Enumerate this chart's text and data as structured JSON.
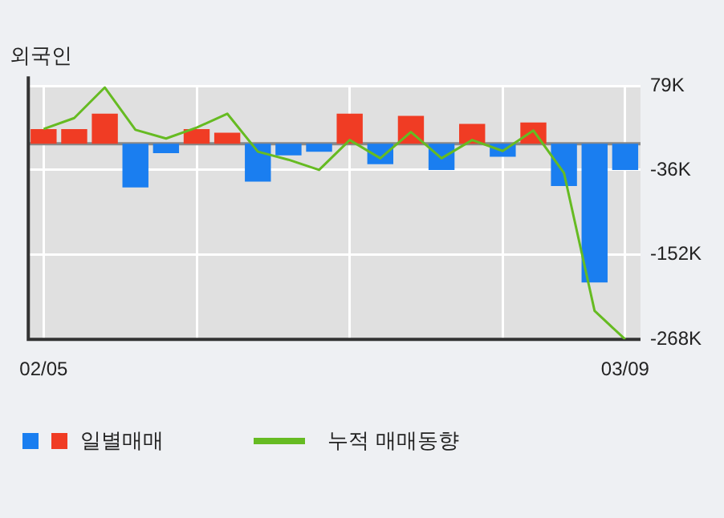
{
  "chart_data": {
    "type": "bar",
    "title": "외국인",
    "categories": [
      "02/05",
      null,
      null,
      null,
      null,
      null,
      null,
      null,
      null,
      null,
      null,
      null,
      null,
      null,
      null,
      null,
      null,
      null,
      null,
      "03/09"
    ],
    "series": [
      {
        "name": "일별매매",
        "colors": [
          "#f03c24",
          "#f03c24",
          "#f03c24",
          "#1a7ef0",
          "#1a7ef0",
          "#f03c24",
          "#f03c24",
          "#1a7ef0",
          "#1a7ef0",
          "#1a7ef0",
          "#f03c24",
          "#1a7ef0",
          "#f03c24",
          "#1a7ef0",
          "#f03c24",
          "#1a7ef0",
          "#f03c24",
          "#1a7ef0",
          "#1a7ef0",
          "#1a7ef0"
        ],
        "values": [
          20,
          20,
          41,
          -60,
          -13,
          20,
          15,
          -52,
          -16,
          -11,
          41,
          -28,
          38,
          -36,
          27,
          -18,
          29,
          -58,
          -190,
          -36
        ]
      },
      {
        "type": "line",
        "name": "누적 매매동향",
        "color": "#66bb22",
        "values": [
          20,
          35,
          77,
          19,
          7,
          22,
          41,
          -11,
          -22,
          -36,
          5,
          -20,
          16,
          -20,
          5,
          -10,
          18,
          -40,
          -229,
          -268
        ]
      }
    ],
    "ylim": [
      -268,
      79
    ],
    "yticks": [
      {
        "value": 79,
        "label": "79K"
      },
      {
        "value": -36,
        "label": "-36K"
      },
      {
        "value": -152,
        "label": "-152K"
      },
      {
        "value": -268,
        "label": "-268K"
      }
    ],
    "grid": true,
    "legend": "bottom",
    "marker": "none"
  }
}
